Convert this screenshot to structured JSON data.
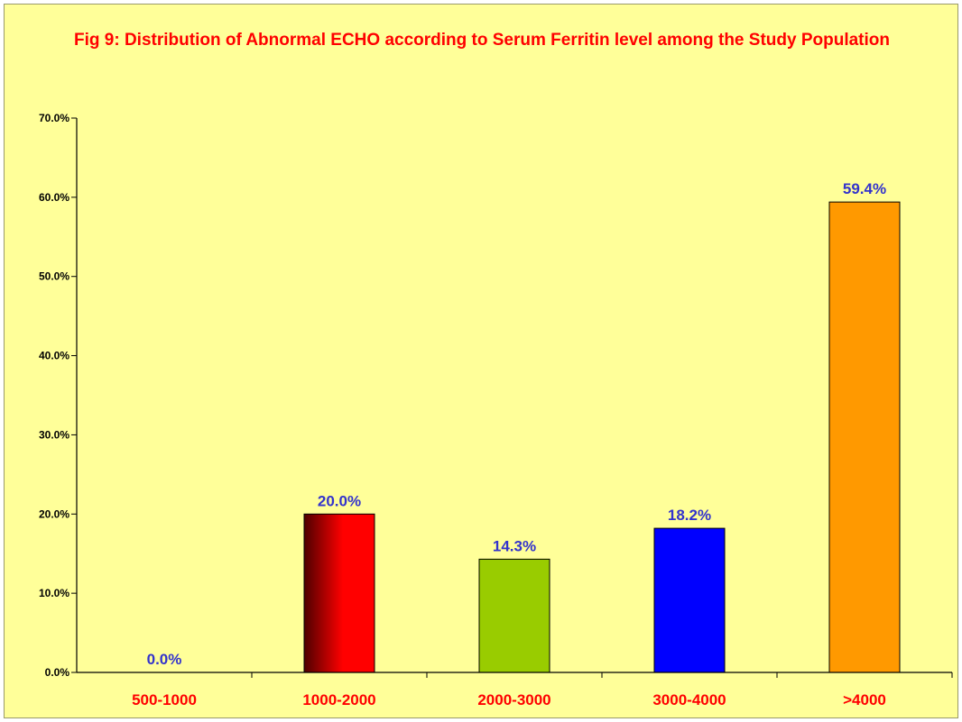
{
  "chart_data": {
    "type": "bar",
    "title": "Fig 9: Distribution of Abnormal ECHO according to Serum Ferritin level among the Study Population",
    "xlabel": "",
    "ylabel": "",
    "categories": [
      "500-1000",
      "1000-2000",
      "2000-3000",
      "3000-4000",
      ">4000"
    ],
    "values": [
      0.0,
      20.0,
      14.3,
      18.2,
      59.4
    ],
    "data_labels": [
      "0.0%",
      "20.0%",
      "14.3%",
      "18.2%",
      "59.4%"
    ],
    "ylim": [
      0,
      70
    ],
    "yticks": [
      0,
      10,
      20,
      30,
      40,
      50,
      60,
      70
    ],
    "ytick_labels": [
      "0.0%",
      "10.0%",
      "20.0%",
      "30.0%",
      "40.0%",
      "50.0%",
      "60.0%",
      "70.0%"
    ],
    "bar_colors": [
      "#ff0000",
      "#ff0000",
      "#99cc00",
      "#0000ff",
      "#ff9900"
    ],
    "grid": false,
    "legend": "none",
    "colors": {
      "background": "#ffff99",
      "title": "#ff0000",
      "category_labels": "#ff0000",
      "data_labels": "#3333cc",
      "axis": "#000000"
    }
  }
}
